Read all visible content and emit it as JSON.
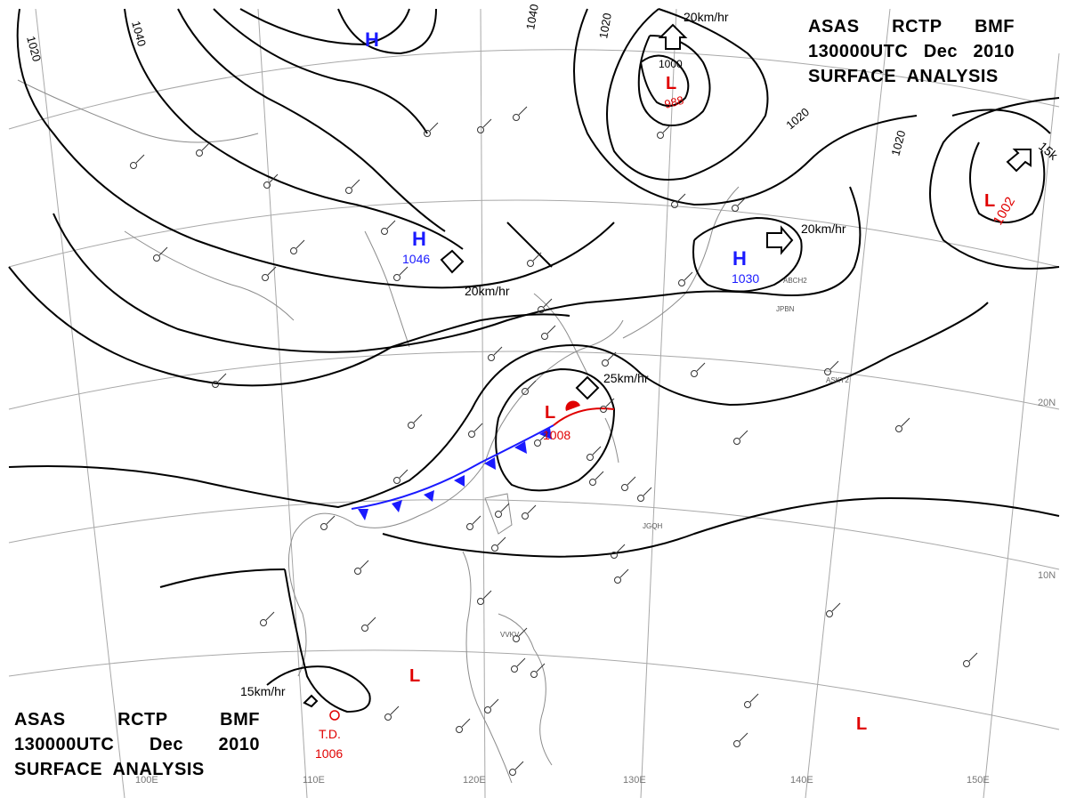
{
  "header": {
    "line1": [
      "ASAS",
      "RCTP",
      "BMF"
    ],
    "line2": [
      "130000UTC",
      "Dec",
      "2010"
    ],
    "line3": "SURFACE  ANALYSIS"
  },
  "colors": {
    "high": "#1a1aff",
    "low": "#e00000",
    "front_cold": "#1a1aff",
    "front_warm": "#e00000",
    "isobar": "#000000",
    "grid": "#999999"
  },
  "isobar_labels": [
    "1020",
    "1040",
    "1040",
    "1020",
    "1020",
    "1020",
    "1000"
  ],
  "longitude_labels": [
    "100E",
    "110E",
    "120E",
    "130E",
    "140E",
    "150E"
  ],
  "latitude_labels": [
    "20N",
    "10N"
  ],
  "highs": [
    {
      "symbol": "H",
      "value": ""
    },
    {
      "symbol": "H",
      "value": "1046"
    },
    {
      "symbol": "H",
      "value": "1030"
    }
  ],
  "lows": [
    {
      "symbol": "L",
      "value": "988"
    },
    {
      "symbol": "L",
      "value": "1002"
    },
    {
      "symbol": "L",
      "value": "1008"
    },
    {
      "symbol": "L",
      "value": ""
    },
    {
      "symbol": "L",
      "value": ""
    }
  ],
  "tropical_depression": {
    "label": "T.D.",
    "value": "1006"
  },
  "motion_labels": [
    "20km/hr",
    "20km/hr",
    "20km/hr",
    "25km/hr",
    "15km/hr",
    "15k"
  ],
  "station_codes": [
    "JGQH",
    "VVKV",
    "ASKY2",
    "JPBN",
    "ABCH2"
  ]
}
